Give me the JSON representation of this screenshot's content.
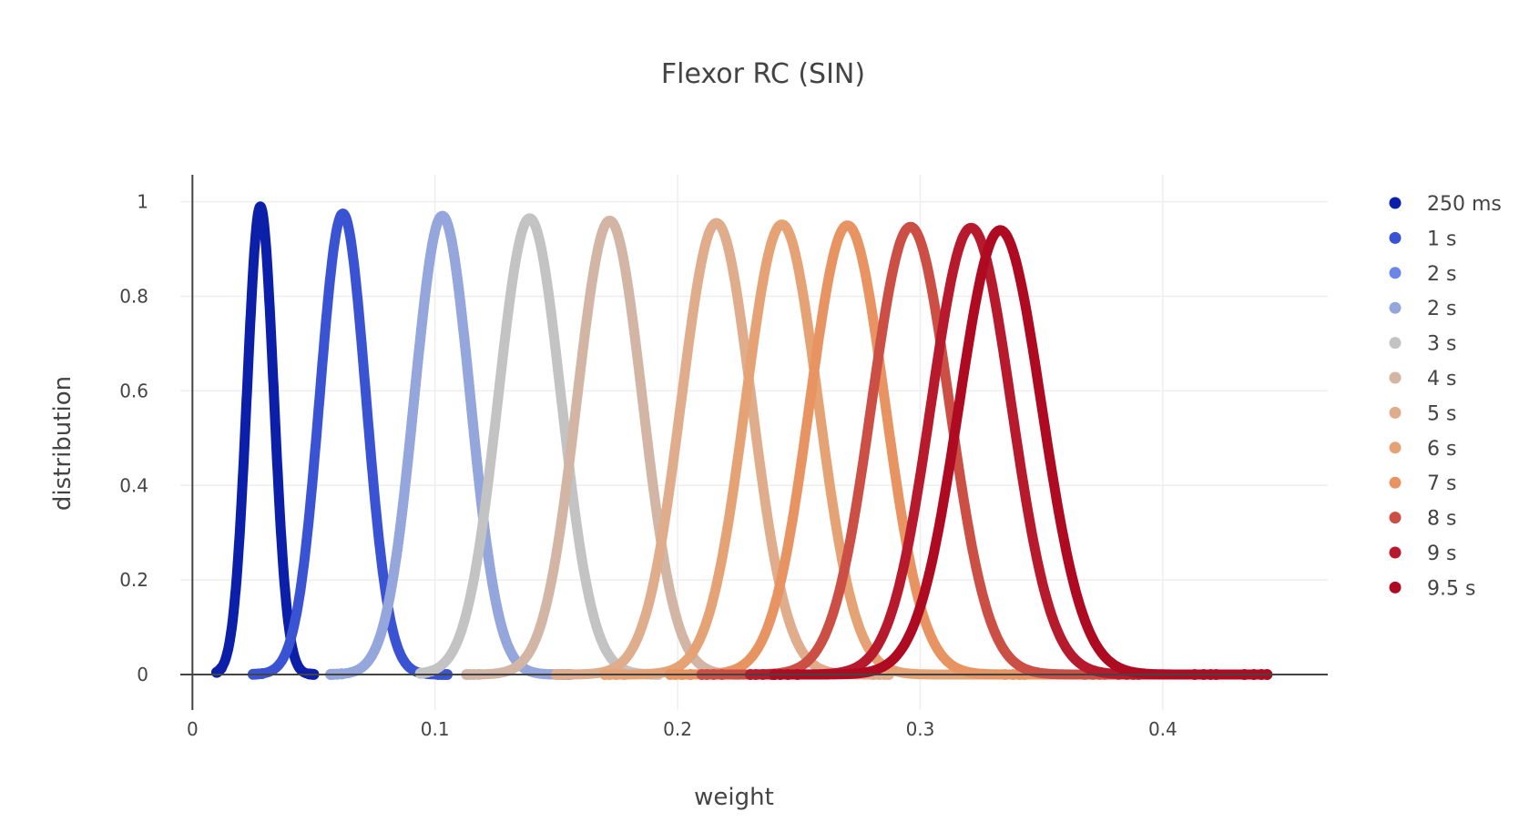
{
  "chart_data": {
    "type": "scatter",
    "title": "Flexor RC (SIN)",
    "xlabel": "weight",
    "ylabel": "distribution",
    "xlim": [
      -0.005,
      0.468
    ],
    "ylim": [
      -0.075,
      1.057
    ],
    "xticks": [
      0,
      0.1,
      0.2,
      0.3,
      0.4
    ],
    "xtick_labels": [
      "0",
      "0.1",
      "0.2",
      "0.3",
      "0.4"
    ],
    "yticks": [
      0,
      0.2,
      0.4,
      0.6,
      0.8,
      1
    ],
    "ytick_labels": [
      "0",
      "0.2",
      "0.4",
      "0.6",
      "0.8",
      "1"
    ],
    "grid": true,
    "legend_position": "right",
    "series": [
      {
        "name": "250 ms",
        "color": "#0c1fa8",
        "peak_x": 0.028,
        "peak_y": 0.99,
        "sigma": 0.0055,
        "x_min": 0.01,
        "x_max": 0.05
      },
      {
        "name": "1 s",
        "color": "#3a53d3",
        "peak_x": 0.062,
        "peak_y": 0.975,
        "sigma": 0.0095,
        "x_min": 0.025,
        "x_max": 0.105
      },
      {
        "name": "2 s",
        "color": "#6b86e8",
        "peak_x": 0.103,
        "peak_y": 0.97,
        "sigma": 0.0115,
        "x_min": 0.057,
        "x_max": 0.155
      },
      {
        "name": "2 s",
        "color": "#95a6dc",
        "peak_x": 0.103,
        "peak_y": 0.97,
        "sigma": 0.0115,
        "x_min": 0.057,
        "x_max": 0.155
      },
      {
        "name": "3 s",
        "color": "#c3c3c3",
        "peak_x": 0.139,
        "peak_y": 0.965,
        "sigma": 0.013,
        "x_min": 0.094,
        "x_max": 0.192
      },
      {
        "name": "4 s",
        "color": "#d2b5a4",
        "peak_x": 0.172,
        "peak_y": 0.96,
        "sigma": 0.0135,
        "x_min": 0.113,
        "x_max": 0.225
      },
      {
        "name": "5 s",
        "color": "#dfac8c",
        "peak_x": 0.216,
        "peak_y": 0.955,
        "sigma": 0.0145,
        "x_min": 0.15,
        "x_max": 0.287
      },
      {
        "name": "6 s",
        "color": "#e5a274",
        "peak_x": 0.243,
        "peak_y": 0.952,
        "sigma": 0.015,
        "x_min": 0.17,
        "x_max": 0.343
      },
      {
        "name": "7 s",
        "color": "#e89362",
        "peak_x": 0.27,
        "peak_y": 0.95,
        "sigma": 0.0155,
        "x_min": 0.197,
        "x_max": 0.376
      },
      {
        "name": "8 s",
        "color": "#cb4f44",
        "peak_x": 0.296,
        "peak_y": 0.947,
        "sigma": 0.016,
        "x_min": 0.21,
        "x_max": 0.39
      },
      {
        "name": "9 s",
        "color": "#b71a2c",
        "peak_x": 0.321,
        "peak_y": 0.945,
        "sigma": 0.0165,
        "x_min": 0.23,
        "x_max": 0.422
      },
      {
        "name": "9.5 s",
        "color": "#ae0b22",
        "peak_x": 0.333,
        "peak_y": 0.94,
        "sigma": 0.017,
        "x_min": 0.24,
        "x_max": 0.443
      }
    ]
  }
}
